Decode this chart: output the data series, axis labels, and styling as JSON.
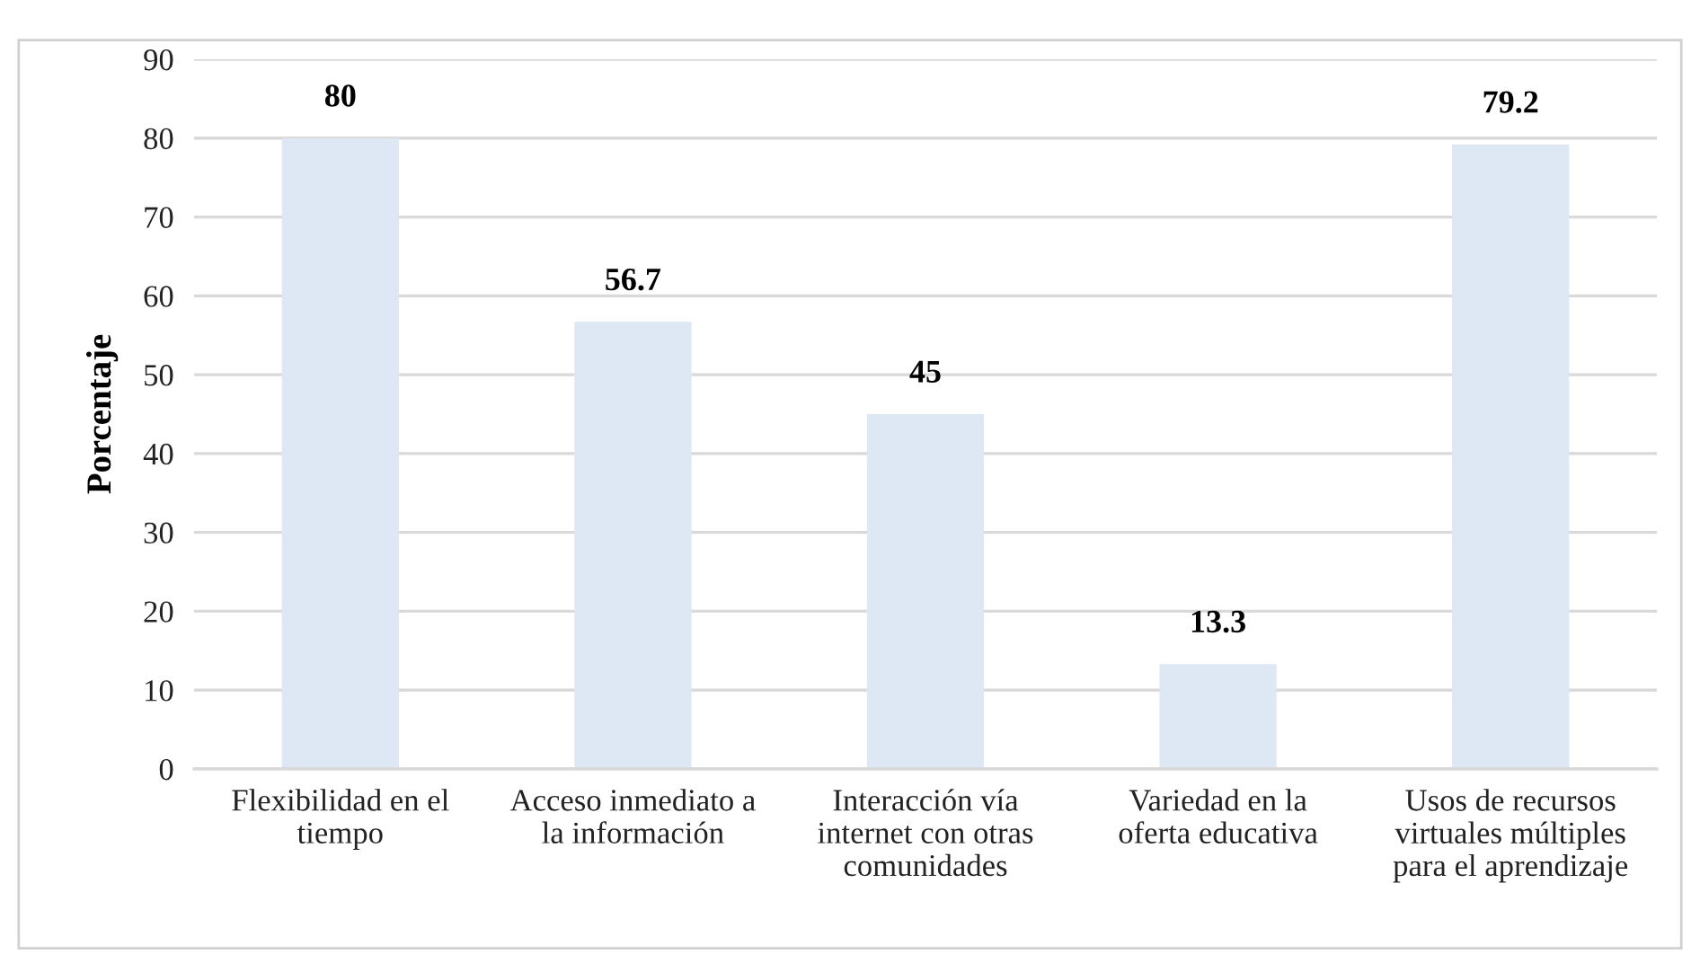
{
  "chart_data": {
    "type": "bar",
    "ylabel": "Porcentaje",
    "categories": [
      "Flexibilidad en el\ntiempo",
      "Acceso inmediato a\nla información",
      "Interacción vía\ninternet con otras\ncomunidades",
      "Variedad en la\noferta educativa",
      "Usos de recursos\nvirtuales múltiples\npara el aprendizaje"
    ],
    "values": [
      80,
      56.7,
      45,
      13.3,
      79.2
    ],
    "color": "#dde8f4",
    "ylim": [
      0,
      90
    ],
    "yticks": [
      0,
      10,
      20,
      30,
      40,
      50,
      60,
      70,
      80,
      90
    ],
    "grid": "y",
    "data_labels": true,
    "legend": false
  }
}
